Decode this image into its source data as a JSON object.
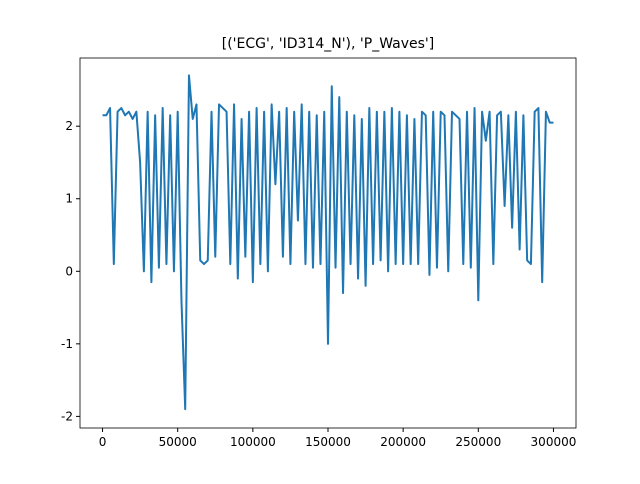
{
  "chart_data": {
    "type": "line",
    "title": "[('ECG', 'ID314_N'), 'P_Waves']",
    "x": [
      0,
      2500,
      5000,
      7500,
      10000,
      12500,
      15000,
      17500,
      20000,
      22500,
      25000,
      27500,
      30000,
      32500,
      35000,
      37500,
      40000,
      42500,
      45000,
      47500,
      50000,
      52500,
      55000,
      57500,
      60000,
      62500,
      65000,
      67500,
      70000,
      72500,
      75000,
      77500,
      80000,
      82500,
      85000,
      87500,
      90000,
      92500,
      95000,
      97500,
      100000,
      102500,
      105000,
      107500,
      110000,
      112500,
      115000,
      117500,
      120000,
      122500,
      125000,
      127500,
      130000,
      132500,
      135000,
      137500,
      140000,
      142500,
      145000,
      147500,
      150000,
      152500,
      155000,
      157500,
      160000,
      162500,
      165000,
      167500,
      170000,
      172500,
      175000,
      177500,
      180000,
      182500,
      185000,
      187500,
      190000,
      192500,
      195000,
      197500,
      200000,
      202500,
      205000,
      207500,
      210000,
      212500,
      215000,
      217500,
      220000,
      222500,
      225000,
      227500,
      230000,
      232500,
      235000,
      237500,
      240000,
      242500,
      245000,
      247500,
      250000,
      252500,
      255000,
      257500,
      260000,
      262500,
      265000,
      267500,
      270000,
      272500,
      275000,
      277500,
      280000,
      282500,
      285000,
      287500,
      290000,
      292500,
      295000,
      297500,
      300000
    ],
    "series": [
      {
        "name": "P_Waves",
        "color": "#1f77b4",
        "values": [
          2.15,
          2.15,
          2.25,
          0.1,
          2.2,
          2.25,
          2.15,
          2.2,
          2.1,
          2.2,
          1.5,
          0.0,
          2.2,
          -0.15,
          2.15,
          0.05,
          2.25,
          0.1,
          2.15,
          0.0,
          2.2,
          -0.4,
          -1.9,
          2.7,
          2.1,
          2.3,
          0.15,
          0.1,
          0.15,
          2.2,
          0.2,
          2.3,
          2.25,
          2.2,
          0.1,
          2.3,
          -0.1,
          2.1,
          0.2,
          2.2,
          -0.15,
          2.25,
          0.1,
          2.2,
          0.0,
          2.3,
          1.2,
          2.2,
          0.2,
          2.25,
          0.1,
          2.2,
          0.7,
          2.3,
          0.1,
          2.2,
          0.05,
          2.15,
          0.1,
          2.2,
          -1.0,
          2.55,
          0.05,
          2.4,
          -0.3,
          2.2,
          0.1,
          2.15,
          -0.1,
          2.1,
          -0.2,
          2.25,
          0.1,
          2.2,
          0.15,
          2.2,
          0.0,
          2.25,
          0.1,
          2.2,
          0.1,
          2.15,
          0.1,
          2.1,
          0.1,
          2.2,
          2.15,
          -0.05,
          2.2,
          0.05,
          2.2,
          2.15,
          0.0,
          2.2,
          2.15,
          2.1,
          0.1,
          2.2,
          0.05,
          2.25,
          -0.4,
          2.2,
          1.8,
          2.2,
          0.1,
          2.15,
          2.2,
          0.9,
          2.15,
          0.6,
          2.2,
          0.3,
          2.15,
          0.15,
          0.1,
          2.2,
          2.25,
          -0.15,
          2.2,
          2.05,
          2.05
        ]
      }
    ],
    "xlim": [
      -15000,
      315000
    ],
    "ylim": [
      -2.16,
      2.94
    ],
    "xticks": [
      0,
      50000,
      100000,
      150000,
      200000,
      250000,
      300000
    ],
    "yticks": [
      -2,
      -1,
      0,
      1,
      2
    ]
  }
}
